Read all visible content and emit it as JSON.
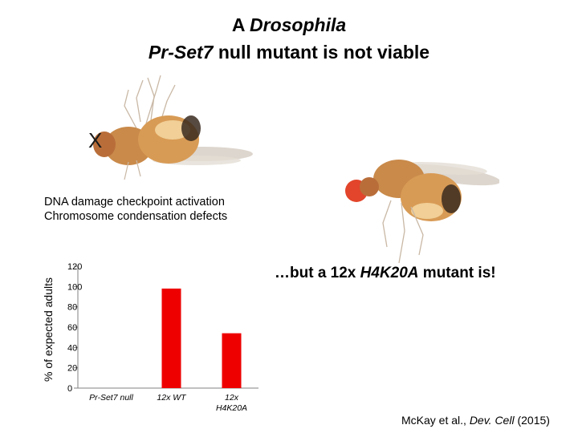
{
  "slide": {
    "title_prefix": "A ",
    "title_emph_1": "Drosophila",
    "title_emph_2": "Pr-Set7",
    "title_suffix": " null mutant is not viable",
    "x_mark": "X",
    "defects": [
      "DNA damage checkpoint activation",
      "Chromosome condensation defects"
    ],
    "mutant_note_prefix": "…but a 12x ",
    "mutant_note_emph": "H4K20A",
    "mutant_note_suffix": " mutant is!",
    "citation_prefix": "McKay et al., ",
    "citation_journal": "Dev. Cell",
    "citation_year": " (2015)"
  },
  "colors": {
    "bar": "#ee0000",
    "fly_body": "#d89b55",
    "fly_eye": "#e2452b"
  },
  "chart_data": {
    "type": "bar",
    "ylabel": "% of expected adults",
    "ylim": [
      0,
      120
    ],
    "yticks": [
      0,
      20,
      40,
      60,
      80,
      100,
      120
    ],
    "categories": [
      "Pr-Set7 null",
      "12x WT",
      "12x H4K20A"
    ],
    "category_lines": [
      [
        "Pr-Set7 null"
      ],
      [
        "12x WT"
      ],
      [
        "12x",
        "H4K20A"
      ]
    ],
    "values": [
      0,
      98,
      54
    ],
    "grid": false
  }
}
